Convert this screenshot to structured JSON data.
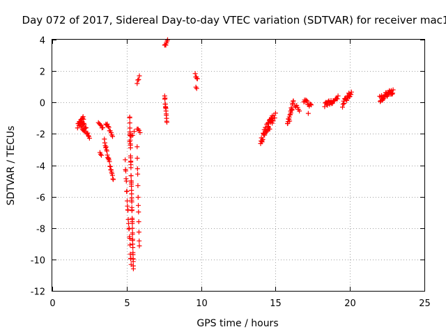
{
  "chart_data": {
    "type": "scatter",
    "title": "Day 072 of 2017, Sidereal Day-to-day VTEC variation (SDTVAR) for receiver mac1",
    "xlabel": "GPS time / hours",
    "ylabel": "SDTVAR / TECUs",
    "xlim": [
      0,
      25
    ],
    "ylim": [
      -12,
      4
    ],
    "xticks": [
      0,
      5,
      10,
      15,
      20,
      25
    ],
    "yticks": [
      -12,
      -10,
      -8,
      -6,
      -4,
      -2,
      0,
      2,
      4
    ],
    "xtick_labels": [
      "0",
      "5",
      "10",
      "15",
      "20",
      "25"
    ],
    "ytick_labels": [
      "-12",
      "-10",
      "-8",
      "-6",
      "-4",
      "-2",
      "0",
      "2",
      "4"
    ],
    "grid": true,
    "marker": "+",
    "color": "#ff0000",
    "series": [
      {
        "name": "SDTVAR",
        "segments": [
          {
            "t0": 1.7,
            "t1": 2.1,
            "v0": -1.5,
            "v1": -1.0,
            "n": 14,
            "j": 0.15
          },
          {
            "t0": 2.0,
            "t1": 2.5,
            "v0": -1.2,
            "v1": -2.2,
            "n": 14,
            "j": 0.15
          },
          {
            "t0": 1.8,
            "t1": 2.2,
            "v0": -1.3,
            "v1": -1.9,
            "n": 8,
            "j": 0.12
          },
          {
            "t0": 3.1,
            "t1": 3.4,
            "v0": -1.3,
            "v1": -1.6,
            "n": 6,
            "j": 0.1
          },
          {
            "t0": 3.2,
            "t1": 3.3,
            "v0": -3.2,
            "v1": -3.4,
            "n": 3,
            "j": 0.05
          },
          {
            "t0": 3.6,
            "t1": 4.05,
            "v0": -1.3,
            "v1": -2.1,
            "n": 10,
            "j": 0.12
          },
          {
            "t0": 3.5,
            "t1": 4.1,
            "v0": -2.4,
            "v1": -5.0,
            "n": 22,
            "j": 0.12
          },
          {
            "t0": 4.9,
            "t1": 5.3,
            "v0": -3.9,
            "v1": -10.4,
            "n": 22,
            "j": 0.25
          },
          {
            "t0": 5.2,
            "t1": 5.45,
            "v0": -0.9,
            "v1": -10.6,
            "n": 50,
            "j": 0.2
          },
          {
            "t0": 5.2,
            "t1": 5.5,
            "v0": -2.4,
            "v1": -1.9,
            "n": 4,
            "j": 0.1
          },
          {
            "t0": 5.7,
            "t1": 5.85,
            "v0": -3.0,
            "v1": -9.3,
            "n": 12,
            "j": 0.2
          },
          {
            "t0": 5.7,
            "t1": 5.9,
            "v0": -1.7,
            "v1": -1.9,
            "n": 4,
            "j": 0.08
          },
          {
            "t0": 5.7,
            "t1": 5.85,
            "v0": 1.3,
            "v1": 1.6,
            "n": 4,
            "j": 0.1
          },
          {
            "t0": 7.55,
            "t1": 7.75,
            "v0": 3.6,
            "v1": 3.9,
            "n": 6,
            "j": 0.1
          },
          {
            "t0": 7.55,
            "t1": 7.7,
            "v0": 0.4,
            "v1": -1.2,
            "n": 14,
            "j": 0.15
          },
          {
            "t0": 9.6,
            "t1": 9.75,
            "v0": 1.8,
            "v1": 1.5,
            "n": 5,
            "j": 0.1
          },
          {
            "t0": 9.65,
            "t1": 9.7,
            "v0": 1.0,
            "v1": 0.9,
            "n": 2,
            "j": 0.05
          },
          {
            "t0": 14.0,
            "t1": 14.8,
            "v0": -2.4,
            "v1": -0.9,
            "n": 34,
            "j": 0.3
          },
          {
            "t0": 14.5,
            "t1": 15.0,
            "v0": -1.7,
            "v1": -0.8,
            "n": 10,
            "j": 0.2
          },
          {
            "t0": 15.8,
            "t1": 16.2,
            "v0": -1.5,
            "v1": 0.0,
            "n": 20,
            "j": 0.25
          },
          {
            "t0": 16.3,
            "t1": 16.6,
            "v0": -0.1,
            "v1": -0.6,
            "n": 6,
            "j": 0.15
          },
          {
            "t0": 16.9,
            "t1": 17.4,
            "v0": 0.1,
            "v1": -0.2,
            "n": 12,
            "j": 0.15
          },
          {
            "t0": 17.2,
            "t1": 17.25,
            "v0": -0.7,
            "v1": -0.7,
            "n": 1,
            "j": 0.0
          },
          {
            "t0": 18.3,
            "t1": 19.2,
            "v0": -0.2,
            "v1": 0.3,
            "n": 20,
            "j": 0.18
          },
          {
            "t0": 19.5,
            "t1": 20.1,
            "v0": -0.1,
            "v1": 0.6,
            "n": 18,
            "j": 0.2
          },
          {
            "t0": 22.0,
            "t1": 22.9,
            "v0": 0.2,
            "v1": 0.7,
            "n": 30,
            "j": 0.2
          }
        ]
      }
    ]
  }
}
